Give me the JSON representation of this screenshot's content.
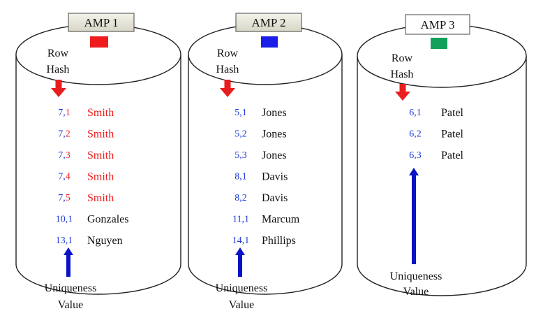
{
  "colors": {
    "hash_blue": "#1f3bd6",
    "name_black": "#111111",
    "name_red": "#ee1c1c",
    "arrow_red": "#e81e1e",
    "arrow_blue": "#0a12c8"
  },
  "amps": [
    {
      "label": "AMP 1",
      "badge_color": "#ee1c1c",
      "row_hash_label": [
        "Row",
        "Hash"
      ],
      "uniqueness_label": [
        "Uniqueness",
        "Value"
      ],
      "rows": [
        {
          "hash": "7",
          "uniq": "1",
          "name": "Smith",
          "hash_color": "#1f3bd6",
          "uniq_color": "#ee1c1c",
          "name_color": "#ee1c1c"
        },
        {
          "hash": "7",
          "uniq": "2",
          "name": "Smith",
          "hash_color": "#1f3bd6",
          "uniq_color": "#ee1c1c",
          "name_color": "#ee1c1c"
        },
        {
          "hash": "7",
          "uniq": "3",
          "name": "Smith",
          "hash_color": "#1f3bd6",
          "uniq_color": "#ee1c1c",
          "name_color": "#ee1c1c"
        },
        {
          "hash": "7",
          "uniq": "4",
          "name": "Smith",
          "hash_color": "#1f3bd6",
          "uniq_color": "#ee1c1c",
          "name_color": "#ee1c1c"
        },
        {
          "hash": "7",
          "uniq": "5",
          "name": "Smith",
          "hash_color": "#1f3bd6",
          "uniq_color": "#ee1c1c",
          "name_color": "#ee1c1c"
        },
        {
          "hash": "10",
          "uniq": "1",
          "name": "Gonzales",
          "hash_color": "#1f3bd6",
          "uniq_color": "#1f3bd6",
          "name_color": "#111111"
        },
        {
          "hash": "13",
          "uniq": "1",
          "name": "Nguyen",
          "hash_color": "#1f3bd6",
          "uniq_color": "#1f3bd6",
          "name_color": "#111111"
        }
      ]
    },
    {
      "label": "AMP 2",
      "badge_color": "#1a1ee6",
      "row_hash_label": [
        "Row",
        "Hash"
      ],
      "uniqueness_label": [
        "Uniqueness",
        "Value"
      ],
      "rows": [
        {
          "hash": "5",
          "uniq": "1",
          "name": "Jones",
          "hash_color": "#1f3bd6",
          "uniq_color": "#1f3bd6",
          "name_color": "#111111"
        },
        {
          "hash": "5",
          "uniq": "2",
          "name": "Jones",
          "hash_color": "#1f3bd6",
          "uniq_color": "#1f3bd6",
          "name_color": "#111111"
        },
        {
          "hash": "5",
          "uniq": "3",
          "name": "Jones",
          "hash_color": "#1f3bd6",
          "uniq_color": "#1f3bd6",
          "name_color": "#111111"
        },
        {
          "hash": "8",
          "uniq": "1",
          "name": "Davis",
          "hash_color": "#1f3bd6",
          "uniq_color": "#1f3bd6",
          "name_color": "#111111"
        },
        {
          "hash": "8",
          "uniq": "2",
          "name": "Davis",
          "hash_color": "#1f3bd6",
          "uniq_color": "#1f3bd6",
          "name_color": "#111111"
        },
        {
          "hash": "11",
          "uniq": "1",
          "name": "Marcum",
          "hash_color": "#1f3bd6",
          "uniq_color": "#1f3bd6",
          "name_color": "#111111"
        },
        {
          "hash": "14",
          "uniq": "1",
          "name": "Phillips",
          "hash_color": "#1f3bd6",
          "uniq_color": "#1f3bd6",
          "name_color": "#111111"
        }
      ]
    },
    {
      "label": "AMP 3",
      "badge_color": "#12a05a",
      "row_hash_label": [
        "Row",
        "Hash"
      ],
      "uniqueness_label": [
        "Uniqueness",
        "Value"
      ],
      "rows": [
        {
          "hash": "6",
          "uniq": "1",
          "name": "Patel",
          "hash_color": "#1f3bd6",
          "uniq_color": "#1f3bd6",
          "name_color": "#111111"
        },
        {
          "hash": "6",
          "uniq": "2",
          "name": "Patel",
          "hash_color": "#1f3bd6",
          "uniq_color": "#1f3bd6",
          "name_color": "#111111"
        },
        {
          "hash": "6",
          "uniq": "3",
          "name": "Patel",
          "hash_color": "#1f3bd6",
          "uniq_color": "#1f3bd6",
          "name_color": "#111111"
        }
      ]
    }
  ]
}
